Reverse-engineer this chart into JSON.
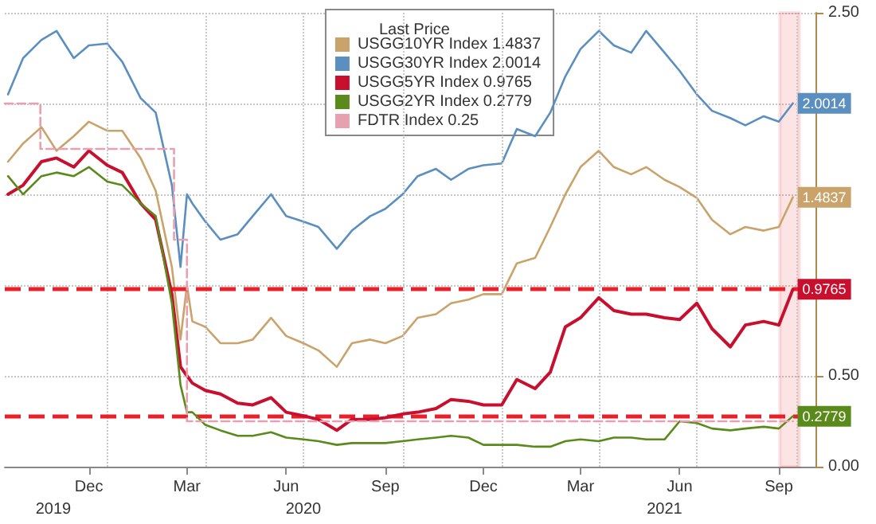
{
  "chart_data": {
    "type": "line",
    "legend_title": "Last Price",
    "legend": "top",
    "grid": true,
    "x": [
      "2019-10-01",
      "2019-10-15",
      "2019-11-01",
      "2019-11-15",
      "2019-12-01",
      "2019-12-15",
      "2020-01-01",
      "2020-01-15",
      "2020-02-01",
      "2020-02-15",
      "2020-03-01",
      "2020-03-09",
      "2020-03-15",
      "2020-03-20",
      "2020-04-01",
      "2020-04-15",
      "2020-05-01",
      "2020-05-15",
      "2020-06-01",
      "2020-06-15",
      "2020-07-01",
      "2020-07-15",
      "2020-08-01",
      "2020-08-15",
      "2020-09-01",
      "2020-09-15",
      "2020-10-01",
      "2020-10-15",
      "2020-11-01",
      "2020-11-15",
      "2020-12-01",
      "2020-12-15",
      "2021-01-01",
      "2021-01-15",
      "2021-02-01",
      "2021-02-15",
      "2021-03-01",
      "2021-03-15",
      "2021-04-01",
      "2021-04-15",
      "2021-05-01",
      "2021-05-15",
      "2021-06-01",
      "2021-06-15",
      "2021-07-01",
      "2021-07-15",
      "2021-08-01",
      "2021-08-15",
      "2021-09-01",
      "2021-09-15",
      "2021-09-28"
    ],
    "series": [
      {
        "name": "USGG10YR Index 1.4837",
        "color": "#c9a36a",
        "values": [
          1.68,
          1.78,
          1.87,
          1.74,
          1.82,
          1.9,
          1.85,
          1.85,
          1.7,
          1.52,
          1.1,
          0.7,
          1.0,
          0.8,
          0.77,
          0.68,
          0.68,
          0.7,
          0.82,
          0.72,
          0.68,
          0.64,
          0.55,
          0.68,
          0.7,
          0.68,
          0.72,
          0.82,
          0.84,
          0.9,
          0.92,
          0.95,
          0.95,
          1.12,
          1.15,
          1.32,
          1.5,
          1.65,
          1.74,
          1.65,
          1.61,
          1.65,
          1.58,
          1.54,
          1.48,
          1.36,
          1.28,
          1.32,
          1.3,
          1.32,
          1.4837
        ],
        "value_labels": [
          null,
          null,
          null,
          null,
          null,
          null,
          null,
          null,
          null,
          null,
          null,
          null,
          null,
          null,
          null,
          null,
          null,
          null,
          null,
          null,
          null,
          null,
          null,
          null,
          null,
          null,
          null,
          null,
          null,
          null,
          null,
          null,
          null,
          null,
          null,
          null,
          null,
          null,
          null,
          null,
          null,
          null,
          null,
          null,
          null,
          null,
          null,
          null,
          null,
          null,
          "1.4837"
        ]
      },
      {
        "name": "USGG30YR Index 2.0014",
        "color": "#5b8fc0",
        "values": [
          2.05,
          2.25,
          2.35,
          2.4,
          2.25,
          2.32,
          2.33,
          2.23,
          2.03,
          1.95,
          1.55,
          1.1,
          1.5,
          1.45,
          1.35,
          1.25,
          1.28,
          1.38,
          1.5,
          1.38,
          1.35,
          1.32,
          1.2,
          1.3,
          1.38,
          1.42,
          1.5,
          1.6,
          1.64,
          1.58,
          1.64,
          1.66,
          1.67,
          1.86,
          1.82,
          1.95,
          2.15,
          2.3,
          2.4,
          2.32,
          2.28,
          2.4,
          2.28,
          2.18,
          2.05,
          1.96,
          1.92,
          1.88,
          1.93,
          1.9,
          2.0014
        ],
        "value_labels": [
          null,
          null,
          null,
          null,
          null,
          null,
          null,
          null,
          null,
          null,
          null,
          null,
          null,
          null,
          null,
          null,
          null,
          null,
          null,
          null,
          null,
          null,
          null,
          null,
          null,
          null,
          null,
          null,
          null,
          null,
          null,
          null,
          null,
          null,
          null,
          null,
          null,
          null,
          null,
          null,
          null,
          null,
          null,
          null,
          null,
          null,
          null,
          null,
          null,
          null,
          "2.0014"
        ]
      },
      {
        "name": "USGG5YR Index 0.9765",
        "color": "#c8102e",
        "values": [
          1.5,
          1.55,
          1.68,
          1.7,
          1.65,
          1.74,
          1.66,
          1.62,
          1.45,
          1.36,
          0.95,
          0.55,
          0.5,
          0.46,
          0.42,
          0.4,
          0.35,
          0.34,
          0.38,
          0.3,
          0.28,
          0.26,
          0.2,
          0.26,
          0.26,
          0.27,
          0.29,
          0.3,
          0.32,
          0.37,
          0.36,
          0.34,
          0.34,
          0.48,
          0.43,
          0.52,
          0.77,
          0.82,
          0.93,
          0.86,
          0.84,
          0.84,
          0.82,
          0.81,
          0.9,
          0.76,
          0.66,
          0.78,
          0.8,
          0.78,
          0.9765
        ],
        "value_labels": [
          null,
          null,
          null,
          null,
          null,
          null,
          null,
          null,
          null,
          null,
          null,
          null,
          null,
          null,
          null,
          null,
          null,
          null,
          null,
          null,
          null,
          null,
          null,
          null,
          null,
          null,
          null,
          null,
          null,
          null,
          null,
          null,
          null,
          null,
          null,
          null,
          null,
          null,
          null,
          null,
          null,
          null,
          null,
          null,
          null,
          null,
          null,
          null,
          null,
          null,
          "0.9765"
        ]
      },
      {
        "name": "USGG2YR Index 0.2779",
        "color": "#5a8a1a",
        "values": [
          1.6,
          1.5,
          1.6,
          1.62,
          1.6,
          1.65,
          1.57,
          1.55,
          1.45,
          1.38,
          0.9,
          0.45,
          0.3,
          0.3,
          0.23,
          0.2,
          0.17,
          0.17,
          0.19,
          0.16,
          0.15,
          0.14,
          0.12,
          0.13,
          0.13,
          0.13,
          0.14,
          0.15,
          0.16,
          0.17,
          0.16,
          0.12,
          0.12,
          0.12,
          0.11,
          0.11,
          0.14,
          0.15,
          0.14,
          0.16,
          0.16,
          0.15,
          0.15,
          0.25,
          0.24,
          0.21,
          0.2,
          0.21,
          0.22,
          0.21,
          0.2779
        ],
        "value_labels": [
          null,
          null,
          null,
          null,
          null,
          null,
          null,
          null,
          null,
          null,
          null,
          null,
          null,
          null,
          null,
          null,
          null,
          null,
          null,
          null,
          null,
          null,
          null,
          null,
          null,
          null,
          null,
          null,
          null,
          null,
          null,
          null,
          null,
          null,
          null,
          null,
          null,
          null,
          null,
          null,
          null,
          null,
          null,
          null,
          null,
          null,
          null,
          null,
          null,
          null,
          "0.2779"
        ]
      },
      {
        "name": "FDTR Index 0.25",
        "type": "step",
        "color": "#e8a0b0",
        "line_style": "dashed",
        "x": [
          "2019-09-28",
          "2019-10-31",
          "2020-03-03",
          "2020-03-15",
          "2021-09-28"
        ],
        "values": [
          2.0,
          1.75,
          1.25,
          0.25,
          0.25
        ]
      }
    ],
    "xlim": [
      "2019-09-28",
      "2021-10-19"
    ],
    "xticks": [
      {
        "value": "2019-12-15",
        "label": "Dec"
      },
      {
        "value": "2020-01-01",
        "label": null
      },
      {
        "value": "2020-03-15",
        "label": "Mar"
      },
      {
        "value": "2020-04-01",
        "label": null
      },
      {
        "value": "2020-06-15",
        "label": "Jun"
      },
      {
        "value": "2020-07-01",
        "label": null
      },
      {
        "value": "2020-09-15",
        "label": "Sep"
      },
      {
        "value": "2020-10-01",
        "label": null
      },
      {
        "value": "2020-12-15",
        "label": "Dec"
      },
      {
        "value": "2021-01-01",
        "label": null
      },
      {
        "value": "2021-03-15",
        "label": "Mar"
      },
      {
        "value": "2021-04-01",
        "label": null
      },
      {
        "value": "2021-06-15",
        "label": "Jun"
      },
      {
        "value": "2021-07-01",
        "label": null
      },
      {
        "value": "2021-09-15",
        "label": "Sep"
      },
      {
        "value": "2021-10-01",
        "label": null
      }
    ],
    "x2lim": [
      "2019-09-28",
      "2021-10-19"
    ],
    "x2ticks": [
      {
        "value": "2019-11-12",
        "label": "2019"
      },
      {
        "value": "2020-07-01",
        "label": "2020"
      },
      {
        "value": "2021-06-01",
        "label": "2021"
      }
    ],
    "ylim": [
      0,
      2.5
    ],
    "yticks": [
      {
        "value": 0,
        "label": "0.00"
      },
      {
        "value": 0.5,
        "label": "0.50"
      },
      {
        "value": 1,
        "label": null
      },
      {
        "value": 1.5,
        "label": null
      },
      {
        "value": 2,
        "label": null
      },
      {
        "value": 2.5,
        "label": "2.50"
      }
    ],
    "ref_lines": [
      {
        "axis": "y",
        "value": 0.9765,
        "color": "#e8202a",
        "line_style": "dashed"
      },
      {
        "axis": "y",
        "value": 0.2779,
        "color": "#e8202a",
        "line_style": "dashed"
      }
    ],
    "bands": [
      {
        "axis": "x",
        "from": "2021-09-16",
        "to": "2021-10-04",
        "color": "#e8202a"
      }
    ]
  }
}
